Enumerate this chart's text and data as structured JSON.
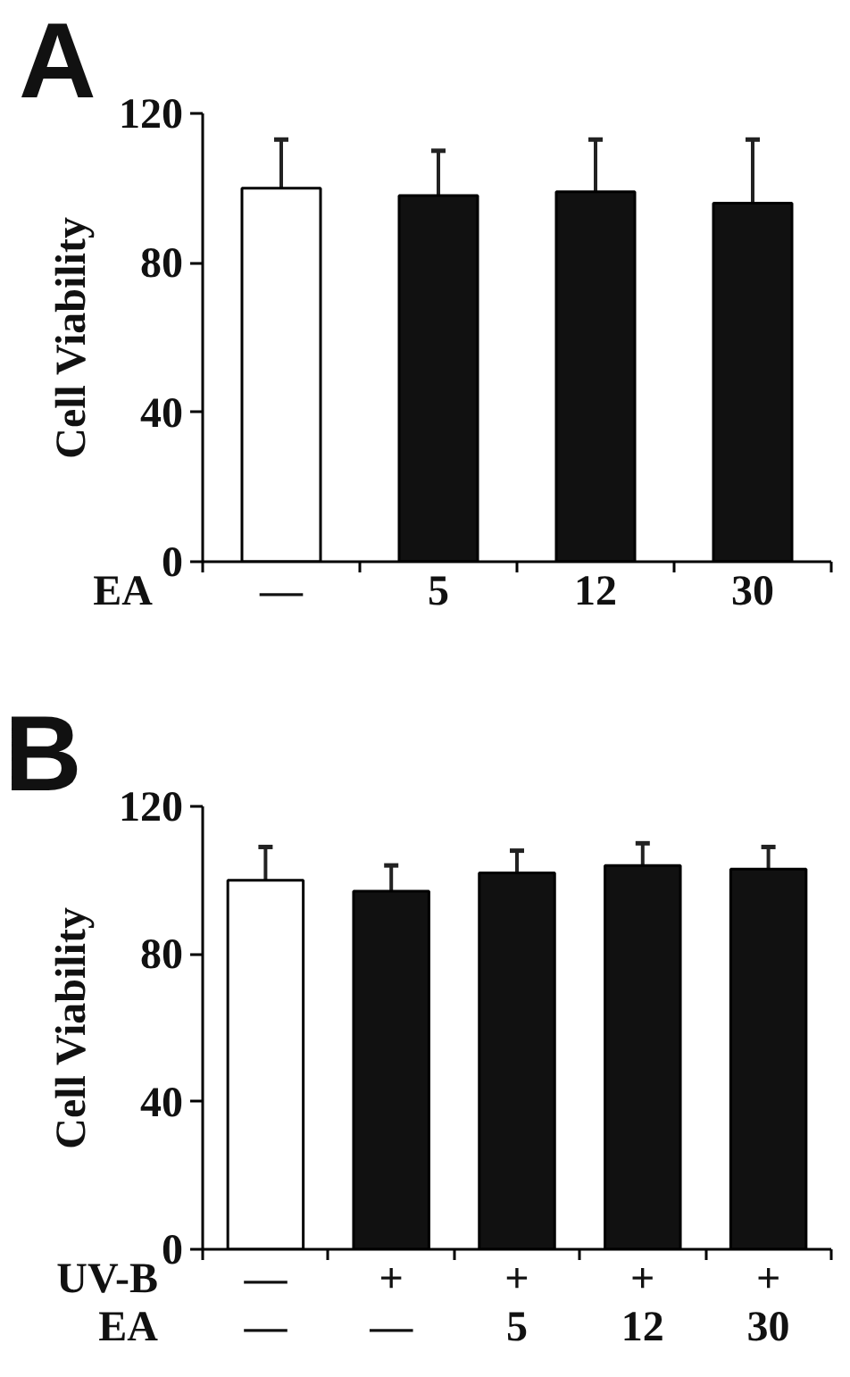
{
  "chart_data": [
    {
      "type": "bar",
      "title": "A",
      "xlabel": "EA",
      "ylabel": "Cell Viability",
      "categories": [
        "—",
        "5",
        "12",
        "30"
      ],
      "values": [
        100,
        98,
        99,
        96
      ],
      "colors": [
        "#ffffff",
        "#111111",
        "#111111",
        "#111111"
      ],
      "errors": [
        [
          100,
          113
        ],
        [
          98,
          110
        ],
        [
          99,
          113
        ],
        [
          96,
          113
        ]
      ],
      "ylim": [
        0,
        120
      ],
      "yticks": [
        0,
        40,
        80,
        120
      ]
    },
    {
      "type": "bar",
      "title": "B",
      "xlabel": "UV-B\nEA",
      "ylabel": "Cell Viability",
      "categories": [
        "—\n—",
        "+\n—",
        "+\n5",
        "+\n12",
        "+\n30"
      ],
      "values": [
        100,
        97,
        102,
        104,
        103
      ],
      "colors": [
        "#ffffff",
        "#111111",
        "#111111",
        "#111111",
        "#111111"
      ],
      "errors": [
        [
          100,
          109
        ],
        [
          97,
          104
        ],
        [
          102,
          108
        ],
        [
          104,
          110
        ],
        [
          103,
          109
        ]
      ],
      "ylim": [
        0,
        120
      ],
      "yticks": [
        0,
        40,
        80,
        120
      ]
    }
  ]
}
